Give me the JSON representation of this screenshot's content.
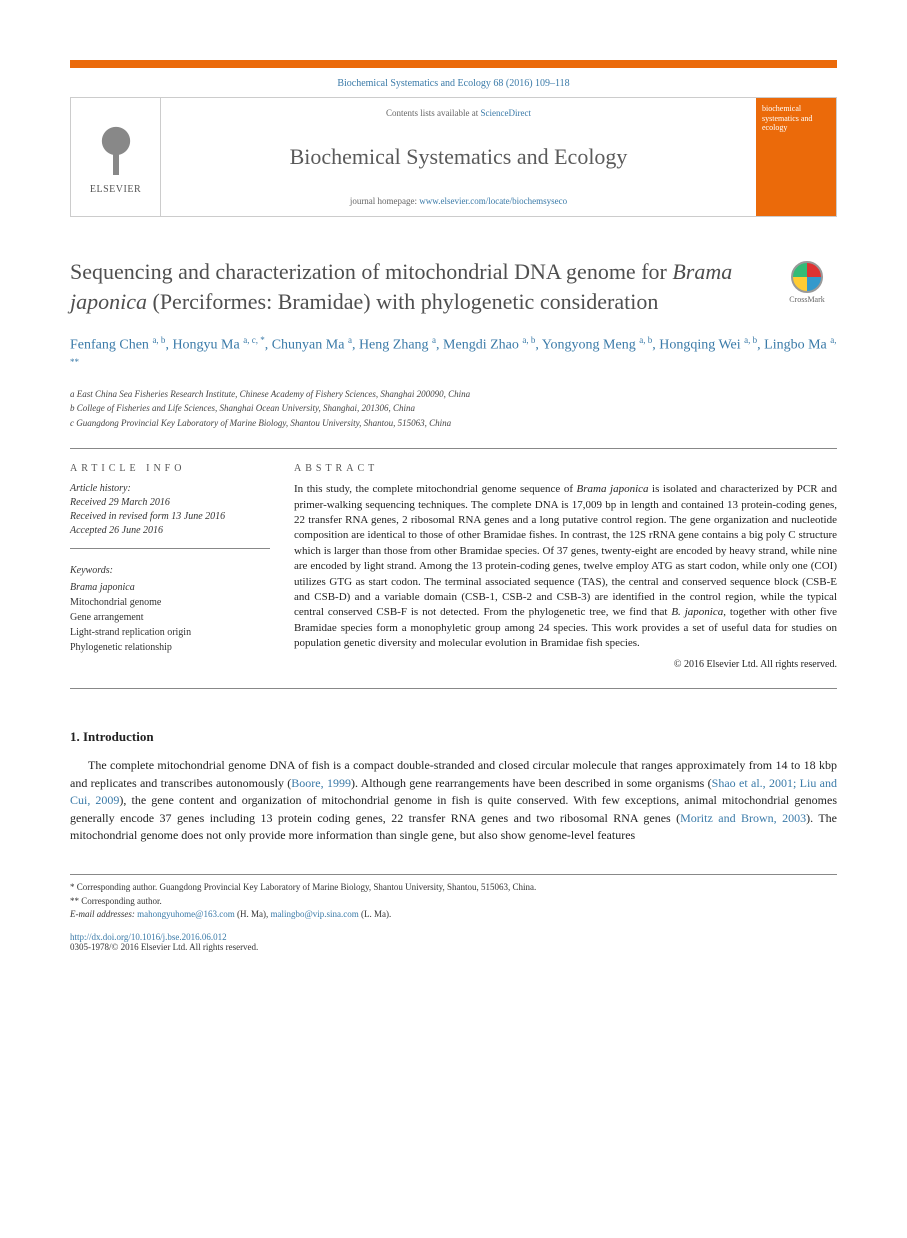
{
  "journal_ref": "Biochemical Systematics and Ecology 68 (2016) 109–118",
  "header": {
    "contents_prefix": "Contents lists available at ",
    "contents_link": "ScienceDirect",
    "journal_name": "Biochemical Systematics and Ecology",
    "homepage_prefix": "journal homepage: ",
    "homepage_url": "www.elsevier.com/locate/biochemsyseco",
    "publisher_logo_text": "ELSEVIER",
    "cover_title": "biochemical systematics and ecology"
  },
  "crossmark_label": "CrossMark",
  "title_html": "Sequencing and characterization of mitochondrial DNA genome for <em>Brama japonica</em> (Perciformes: Bramidae) with phylogenetic consideration",
  "authors_html": "Fenfang Chen <sup>a, b</sup>, Hongyu Ma <sup>a, c, *</sup>, Chunyan Ma <sup>a</sup>, Heng Zhang <sup>a</sup>, Mengdi Zhao <sup>a, b</sup>, Yongyong Meng <sup>a, b</sup>, Hongqing Wei <sup>a, b</sup>, Lingbo Ma <sup>a, **</sup>",
  "affiliations": [
    "a East China Sea Fisheries Research Institute, Chinese Academy of Fishery Sciences, Shanghai 200090, China",
    "b College of Fisheries and Life Sciences, Shanghai Ocean University, Shanghai, 201306, China",
    "c Guangdong Provincial Key Laboratory of Marine Biology, Shantou University, Shantou, 515063, China"
  ],
  "article_info": {
    "heading": "ARTICLE INFO",
    "history_label": "Article history:",
    "received": "Received 29 March 2016",
    "revised": "Received in revised form 13 June 2016",
    "accepted": "Accepted 26 June 2016",
    "keywords_label": "Keywords:",
    "keywords": [
      "<em>Brama japonica</em>",
      "Mitochondrial genome",
      "Gene arrangement",
      "Light-strand replication origin",
      "Phylogenetic relationship"
    ]
  },
  "abstract": {
    "heading": "ABSTRACT",
    "text_html": "In this study, the complete mitochondrial genome sequence of <em>Brama japonica</em> is isolated and characterized by PCR and primer-walking sequencing techniques. The complete DNA is 17,009 bp in length and contained 13 protein-coding genes, 22 transfer RNA genes, 2 ribosomal RNA genes and a long putative control region. The gene organization and nucleotide composition are identical to those of other Bramidae fishes. In contrast, the 12S rRNA gene contains a big poly C structure which is larger than those from other Bramidae species. Of 37 genes, twenty-eight are encoded by heavy strand, while nine are encoded by light strand. Among the 13 protein-coding genes, twelve employ ATG as start codon, while only one (COI) utilizes GTG as start codon. The terminal associated sequence (TAS), the central and conserved sequence block (CSB-E and CSB-D) and a variable domain (CSB-1, CSB-2 and CSB-3) are identified in the control region, while the typical central conserved CSB-F is not detected. From the phylogenetic tree, we find that <em>B. japonica</em>, together with other five Bramidae species form a monophyletic group among 24 species. This work provides a set of useful data for studies on population genetic diversity and molecular evolution in Bramidae fish species.",
    "copyright": "© 2016 Elsevier Ltd. All rights reserved."
  },
  "intro": {
    "heading": "1. Introduction",
    "paragraph_html": "The complete mitochondrial genome DNA of fish is a compact double-stranded and closed circular molecule that ranges approximately from 14 to 18 kbp and replicates and transcribes autonomously (<a>Boore, 1999</a>). Although gene rearrangements have been described in some organisms (<a>Shao et al., 2001; Liu and Cui, 2009</a>), the gene content and organization of mitochondrial genome in fish is quite conserved. With few exceptions, animal mitochondrial genomes generally encode 37 genes including 13 protein coding genes, 22 transfer RNA genes and two ribosomal RNA genes (<a>Moritz and Brown, 2003</a>). The mitochondrial genome does not only provide more information than single gene, but also show genome-level features"
  },
  "footer": {
    "corr1": "* Corresponding author. Guangdong Provincial Key Laboratory of Marine Biology, Shantou University, Shantou, 515063, China.",
    "corr2": "** Corresponding author.",
    "email_label": "E-mail addresses:",
    "email1": "mahongyuhome@163.com",
    "email1_name": " (H. Ma), ",
    "email2": "malingbo@vip.sina.com",
    "email2_name": " (L. Ma).",
    "doi": "http://dx.doi.org/10.1016/j.bse.2016.06.012",
    "issn": "0305-1978/© 2016 Elsevier Ltd. All rights reserved."
  },
  "colors": {
    "accent_orange": "#eb6a0a",
    "link_blue": "#3a7aa8",
    "heading_gray": "#4f4f4f"
  }
}
